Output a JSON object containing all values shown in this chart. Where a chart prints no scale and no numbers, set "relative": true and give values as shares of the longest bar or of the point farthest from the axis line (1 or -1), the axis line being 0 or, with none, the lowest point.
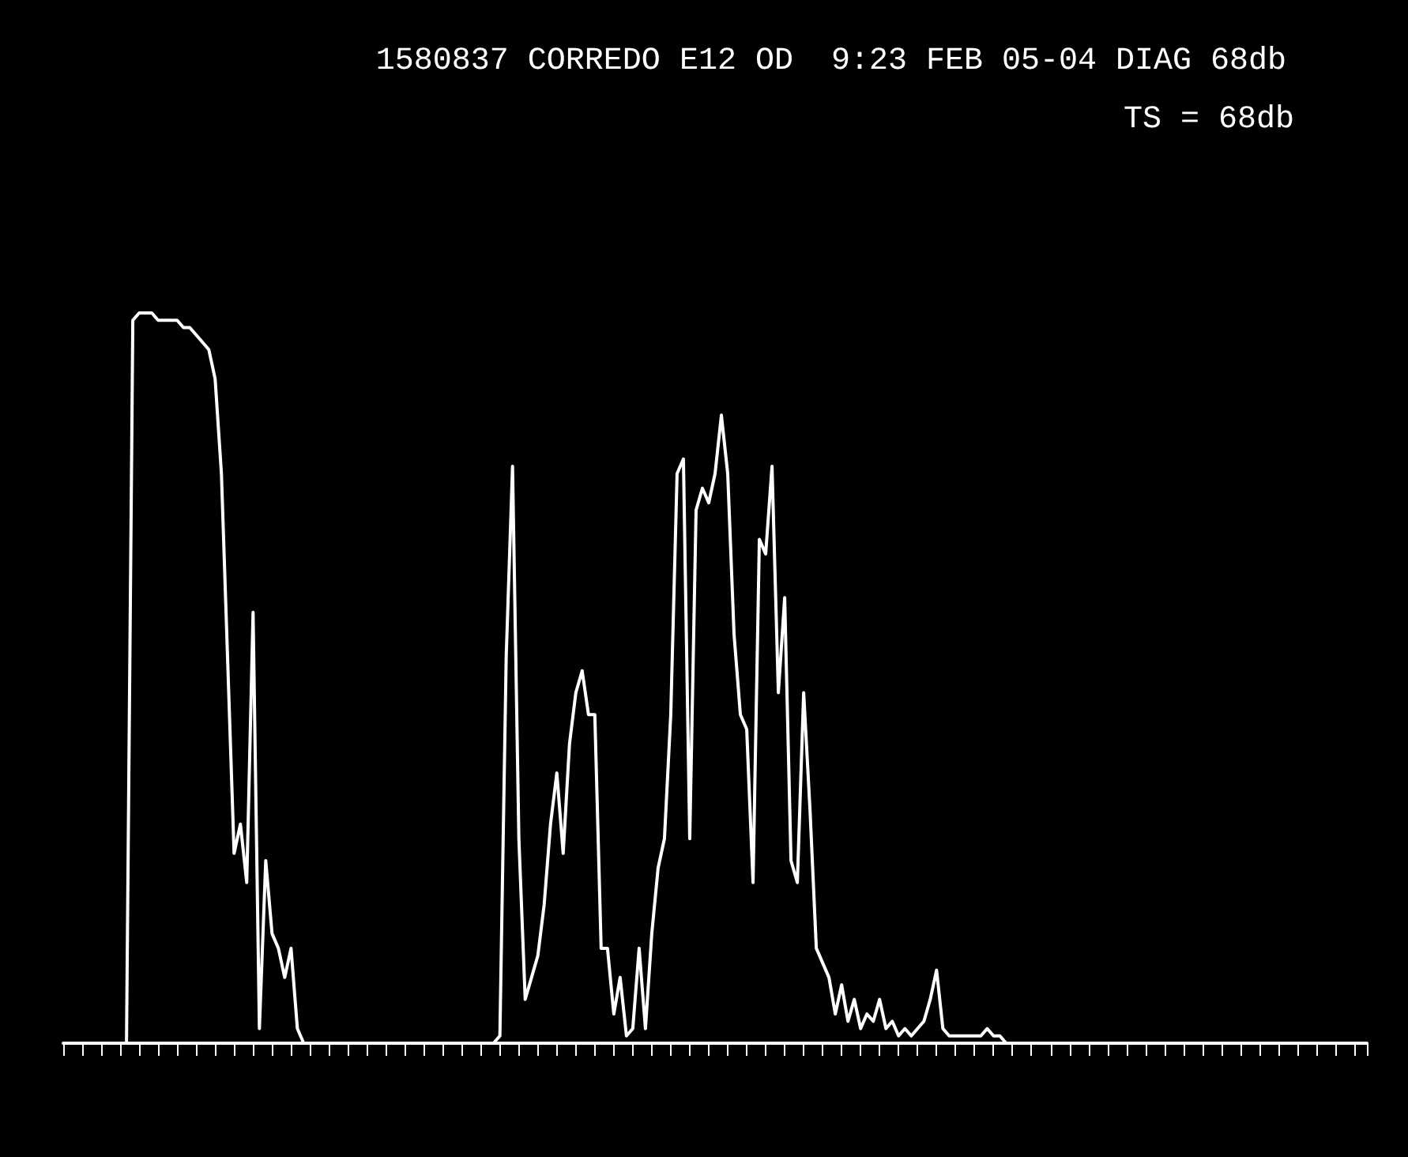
{
  "chart_data": {
    "type": "line",
    "title": "1580837 CORREDO E12 OD  9:23 FEB 05-04 DIAG 68db",
    "annotations": [
      "TS = 68db"
    ],
    "categories": [
      null,
      null,
      null,
      null,
      null,
      null,
      null,
      null,
      null,
      null,
      null,
      null,
      null,
      null,
      null,
      null,
      null,
      null,
      null,
      null,
      null,
      null,
      null,
      null,
      null,
      null,
      null,
      null,
      null,
      null,
      null,
      null,
      null,
      null,
      null,
      null,
      null,
      null,
      null,
      null,
      null,
      null,
      null,
      null,
      null,
      null,
      null,
      null,
      null,
      null,
      null,
      null,
      null,
      null,
      null,
      null,
      null,
      null,
      null,
      null,
      null,
      null,
      null,
      null,
      null,
      null,
      null,
      null,
      null,
      null,
      null,
      null,
      null,
      null,
      null,
      null,
      null,
      null,
      null,
      null,
      null,
      null,
      null,
      null,
      null,
      null,
      null,
      null,
      null,
      null,
      null,
      null,
      null,
      null,
      null,
      null,
      null,
      null,
      null,
      null,
      null,
      null,
      null,
      null,
      null,
      null,
      null,
      null,
      null,
      null,
      null,
      null,
      null,
      null,
      null,
      null,
      null,
      null,
      null,
      null,
      null,
      null,
      null,
      null,
      null,
      null,
      null,
      null,
      null,
      null,
      null,
      null,
      null,
      null,
      null,
      null,
      null,
      null,
      null,
      null,
      null,
      null,
      null,
      null,
      null,
      null,
      null,
      null,
      null,
      null,
      null,
      null,
      null,
      null,
      null,
      null,
      null,
      null,
      null,
      null,
      null,
      null,
      null,
      null,
      null,
      null,
      null,
      null,
      null,
      null,
      null,
      null,
      null,
      null,
      null,
      null,
      null,
      null,
      null,
      null,
      null,
      null,
      null,
      null,
      null,
      null,
      null,
      null,
      null,
      null,
      null,
      null,
      null,
      null,
      null,
      null,
      null,
      null,
      null,
      null,
      null,
      null,
      null,
      null,
      null,
      null,
      null
    ],
    "series": [
      {
        "color": "#ffffff",
        "values": [
          0,
          0,
          0,
          0,
          0,
          0,
          0,
          0,
          0,
          0,
          0,
          0.99,
          1,
          1,
          1,
          0.99,
          0.99,
          0.99,
          0.99,
          0.98,
          0.98,
          0.97,
          0.96,
          0.95,
          0.91,
          0.78,
          0.52,
          0.26,
          0.3,
          0.22,
          0.59,
          0.02,
          0.25,
          0.15,
          0.13,
          0.09,
          0.13,
          0.02,
          0,
          0,
          0,
          0,
          0,
          0,
          0,
          0,
          0,
          0,
          0,
          0,
          0,
          0,
          0,
          0,
          0,
          0,
          0,
          0,
          0,
          0,
          0,
          0,
          0,
          0,
          0,
          0,
          0,
          0,
          0,
          0.01,
          0.53,
          0.79,
          0.28,
          0.06,
          0.09,
          0.12,
          0.19,
          0.3,
          0.37,
          0.26,
          0.41,
          0.48,
          0.51,
          0.45,
          0.45,
          0.13,
          0.13,
          0.04,
          0.09,
          0.01,
          0.02,
          0.13,
          0.02,
          0.15,
          0.24,
          0.28,
          0.45,
          0.78,
          0.8,
          0.28,
          0.73,
          0.76,
          0.74,
          0.78,
          0.86,
          0.78,
          0.56,
          0.45,
          0.43,
          0.22,
          0.69,
          0.67,
          0.79,
          0.48,
          0.61,
          0.25,
          0.22,
          0.48,
          0.32,
          0.13,
          0.11,
          0.09,
          0.04,
          0.08,
          0.03,
          0.06,
          0.02,
          0.04,
          0.03,
          0.06,
          0.02,
          0.03,
          0.01,
          0.02,
          0.01,
          0.02,
          0.03,
          0.06,
          0.1,
          0.02,
          0.01,
          0.01,
          0.01,
          0.01,
          0.01,
          0.01,
          0.02,
          0.01,
          0.01,
          0,
          0,
          0,
          0,
          0,
          0,
          0,
          0,
          0,
          0,
          0,
          0,
          0,
          0,
          0,
          0,
          0,
          0,
          0,
          0,
          0,
          0,
          0,
          0,
          0,
          0,
          0,
          0,
          0,
          0,
          0,
          0,
          0,
          0,
          0,
          0,
          0,
          0,
          0,
          0,
          0,
          0,
          0,
          0,
          0,
          0,
          0,
          0,
          0,
          0,
          0,
          0,
          0,
          0,
          0,
          0,
          0,
          0
        ]
      }
    ],
    "relative": true
  }
}
